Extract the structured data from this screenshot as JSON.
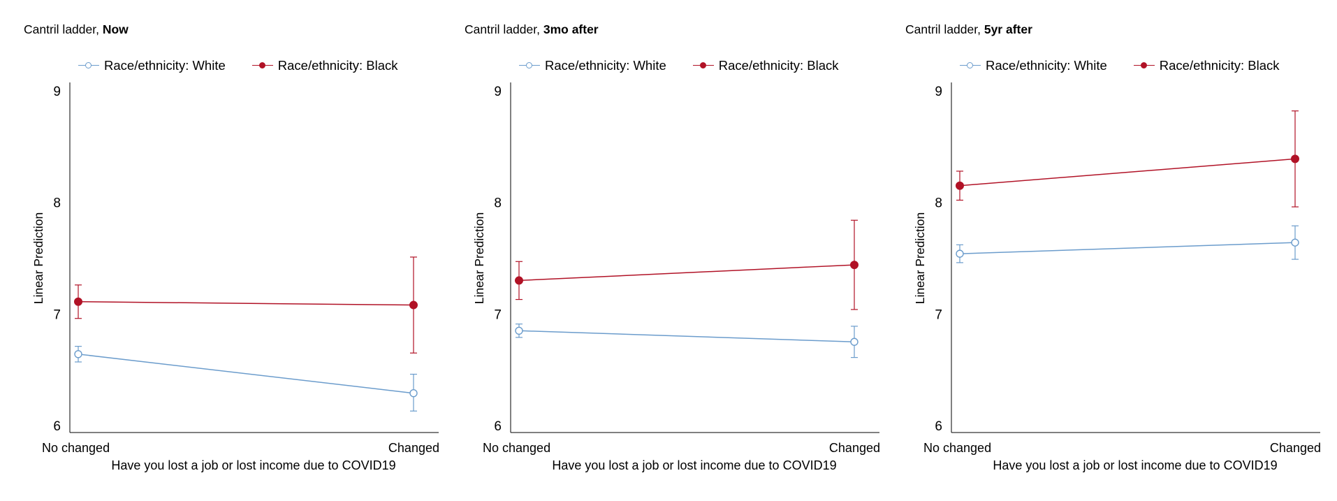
{
  "legend": {
    "white_label": "Race/ethnicity: White",
    "black_label": "Race/ethnicity: Black"
  },
  "colors": {
    "white": "#6b9ccc",
    "black": "#b11226"
  },
  "chart_data": [
    {
      "type": "line",
      "title_prefix": "Cantril ladder, ",
      "title_bold": "Now",
      "xlabel": "Have you lost a job or lost income due to COVID19",
      "ylabel": "Linear Prediction",
      "categories": [
        "No changed",
        "Changed"
      ],
      "ylim": [
        6,
        9
      ],
      "yticks": [
        6,
        7,
        8,
        9
      ],
      "series": [
        {
          "name": "Race/ethnicity: White",
          "values": [
            6.64,
            6.29
          ],
          "ci_low": [
            6.57,
            6.13
          ],
          "ci_high": [
            6.71,
            6.46
          ]
        },
        {
          "name": "Race/ethnicity: Black",
          "values": [
            7.11,
            7.08
          ],
          "ci_low": [
            6.96,
            6.65
          ],
          "ci_high": [
            7.26,
            7.51
          ]
        }
      ]
    },
    {
      "type": "line",
      "title_prefix": "Cantril ladder, ",
      "title_bold": "3mo after",
      "xlabel": "Have you lost a job or lost income due to COVID19",
      "ylabel": "Linear Prediction",
      "categories": [
        "No changed",
        "Changed"
      ],
      "ylim": [
        6,
        9
      ],
      "yticks": [
        6,
        7,
        8,
        9
      ],
      "series": [
        {
          "name": "Race/ethnicity: White",
          "values": [
            6.85,
            6.75
          ],
          "ci_low": [
            6.79,
            6.61
          ],
          "ci_high": [
            6.91,
            6.89
          ]
        },
        {
          "name": "Race/ethnicity: Black",
          "values": [
            7.3,
            7.44
          ],
          "ci_low": [
            7.13,
            7.04
          ],
          "ci_high": [
            7.47,
            7.84
          ]
        }
      ]
    },
    {
      "type": "line",
      "title_prefix": "Cantril ladder, ",
      "title_bold": "5yr after",
      "xlabel": "Have you lost a job or lost income due to COVID19",
      "ylabel": "Linear Prediction",
      "categories": [
        "No changed",
        "Changed"
      ],
      "ylim": [
        6,
        9
      ],
      "yticks": [
        6,
        7,
        8,
        9
      ],
      "series": [
        {
          "name": "Race/ethnicity: White",
          "values": [
            7.54,
            7.64
          ],
          "ci_low": [
            7.46,
            7.49
          ],
          "ci_high": [
            7.62,
            7.79
          ]
        },
        {
          "name": "Race/ethnicity: Black",
          "values": [
            8.15,
            8.39
          ],
          "ci_low": [
            8.02,
            7.96
          ],
          "ci_high": [
            8.28,
            8.82
          ]
        }
      ]
    }
  ]
}
